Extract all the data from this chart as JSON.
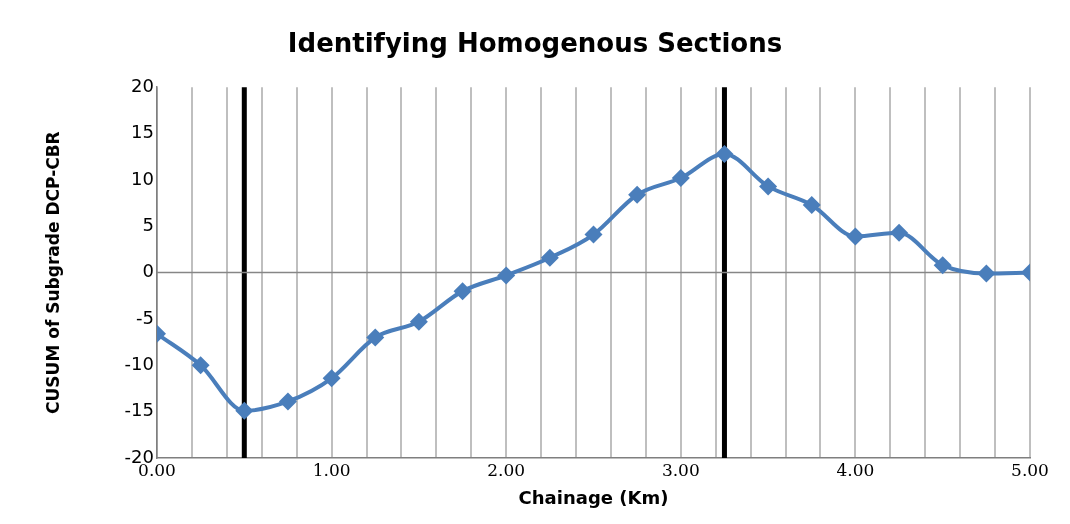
{
  "chart_data": {
    "type": "line",
    "title": "Identifying Homogenous Sections",
    "xlabel": "Chainage (Km)",
    "ylabel": "CUSUM of Subgrade DCP-CBR",
    "x": [
      0,
      0.25,
      0.5,
      0.75,
      1.0,
      1.25,
      1.5,
      1.75,
      2.0,
      2.25,
      2.5,
      2.75,
      3.0,
      3.25,
      3.5,
      3.75,
      4.0,
      4.25,
      4.5,
      4.75,
      5.0
    ],
    "series": [
      {
        "color": "#4a7ebb",
        "values": [
          -6.6,
          -10,
          -14.9,
          -13.9,
          -11.4,
          -7.0,
          -5.3,
          -2.0,
          -0.3,
          1.6,
          4.1,
          8.4,
          10.2,
          12.8,
          9.3,
          7.3,
          3.9,
          4.3,
          0.8,
          -0.1,
          0
        ]
      }
    ],
    "xlim": [
      0,
      5
    ],
    "xticks": [
      {
        "value": 0,
        "label": "0.00"
      },
      {
        "value": 0.2,
        "label": null
      },
      {
        "value": 0.4,
        "label": null
      },
      {
        "value": 0.6,
        "label": null
      },
      {
        "value": 0.8,
        "label": null
      },
      {
        "value": 1,
        "label": "1.00"
      },
      {
        "value": 1.2,
        "label": null
      },
      {
        "value": 1.4,
        "label": null
      },
      {
        "value": 1.6,
        "label": null
      },
      {
        "value": 1.8,
        "label": null
      },
      {
        "value": 2,
        "label": "2.00"
      },
      {
        "value": 2.2,
        "label": null
      },
      {
        "value": 2.4,
        "label": null
      },
      {
        "value": 2.6,
        "label": null
      },
      {
        "value": 2.8,
        "label": null
      },
      {
        "value": 3,
        "label": "3.00"
      },
      {
        "value": 3.2,
        "label": null
      },
      {
        "value": 3.4,
        "label": null
      },
      {
        "value": 3.6,
        "label": null
      },
      {
        "value": 3.8,
        "label": null
      },
      {
        "value": 4,
        "label": "4.00"
      },
      {
        "value": 4.2,
        "label": null
      },
      {
        "value": 4.4,
        "label": null
      },
      {
        "value": 4.6,
        "label": null
      },
      {
        "value": 4.8,
        "label": null
      },
      {
        "value": 5,
        "label": "5.00"
      }
    ],
    "ylim": [
      -20,
      20
    ],
    "yticks": [
      -20,
      -15,
      -10,
      -5,
      0,
      5,
      10,
      15,
      20
    ],
    "ref_lines": [
      {
        "axis": "x",
        "value": 0.5,
        "color": "#000000"
      },
      {
        "axis": "x",
        "value": 3.25,
        "color": "#000000"
      },
      {
        "axis": "y",
        "value": 0,
        "color": "#868686"
      }
    ],
    "grid": "x",
    "legend": false,
    "marker": "diamond",
    "line_style": "solid"
  }
}
